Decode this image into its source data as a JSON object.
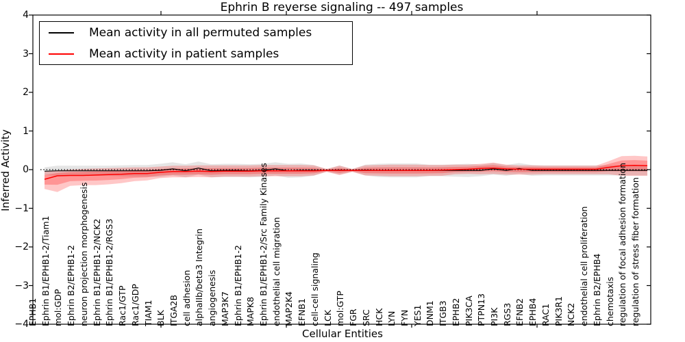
{
  "chart_data": {
    "type": "line",
    "title": "Ephrin B reverse signaling -- 497 samples",
    "xlabel": "Cellular Entities",
    "ylabel": "Inferred Activity",
    "ylim": [
      -4,
      4
    ],
    "yticks": [
      -4,
      -3,
      -2,
      -1,
      0,
      1,
      2,
      3,
      4
    ],
    "ytick_labels": [
      "−4",
      "−3",
      "−2",
      "−1",
      "0",
      "1",
      "2",
      "3",
      "4"
    ],
    "grid": "off",
    "zero_reference_line": 0,
    "legend": {
      "position": "upper left",
      "items": [
        {
          "label": "Mean activity in all permuted samples",
          "color": "#000000"
        },
        {
          "label": "Mean activity in patient samples",
          "color": "#ff0000"
        }
      ]
    },
    "categories": [
      "EPHB1",
      "Ephrin B1/EPHB1-2/Tiam1",
      "mol:GDP",
      "Ephrin B2/EPHB1-2",
      "neuron projection morphogenesis",
      "Ephrin B1/EPHB1-2/NCK2",
      "Ephrin B1/EPHB1-2/RGS3",
      "Rac1/GTP",
      "Rac1/GDP",
      "TIAM1",
      "BLK",
      "ITGA2B",
      "cell adhesion",
      "alphaIIb/beta3 Integrin",
      "angiogenesis",
      "MAP3K7",
      "Ephrin B1/EPHB1-2",
      "MAPK8",
      "Ephrin B1/EPHB1-2/Src Family Kinases",
      "endothelial cell migration",
      "MAP2K4",
      "EFNB1",
      "cell-cell signaling",
      "LCK",
      "mol:GTP",
      "FGR",
      "SRC",
      "HCK",
      "LYN",
      "FYN",
      "YES1",
      "DNM1",
      "ITGB3",
      "EPHB2",
      "PIK3CA",
      "PTPN13",
      "PI3K",
      "RGS3",
      "EFNB2",
      "EPHB4",
      "RAC1",
      "PIK3R1",
      "NCK2",
      "endothelial cell proliferation",
      "Ephrin B2/EPHB4",
      "chemotaxis",
      "regulation of focal adhesion formation",
      "regulation of stress fiber formation"
    ],
    "series": [
      {
        "name": "Mean activity in all permuted samples",
        "color": "#000000",
        "values": [
          -0.04,
          -0.03,
          -0.03,
          -0.03,
          -0.03,
          -0.03,
          -0.03,
          -0.03,
          -0.03,
          -0.02,
          0.02,
          -0.03,
          0.04,
          -0.03,
          -0.02,
          -0.02,
          -0.03,
          -0.02,
          0.02,
          -0.03,
          -0.02,
          -0.02,
          -0.02,
          -0.01,
          -0.02,
          -0.01,
          -0.02,
          -0.02,
          -0.02,
          -0.02,
          -0.02,
          -0.02,
          -0.02,
          -0.02,
          -0.02,
          0.02,
          -0.02,
          0.03,
          -0.02,
          -0.02,
          -0.02,
          -0.02,
          -0.02,
          -0.02,
          -0.02,
          -0.02,
          -0.02,
          -0.02
        ]
      },
      {
        "name": "Mean activity in patient samples",
        "color": "#ff0000",
        "values": [
          -0.25,
          -0.16,
          -0.15,
          -0.15,
          -0.14,
          -0.13,
          -0.12,
          -0.1,
          -0.1,
          -0.07,
          -0.05,
          -0.05,
          -0.04,
          -0.05,
          -0.04,
          -0.04,
          -0.04,
          -0.03,
          -0.03,
          -0.03,
          -0.03,
          -0.03,
          -0.02,
          -0.02,
          -0.02,
          -0.02,
          -0.02,
          -0.02,
          -0.02,
          -0.02,
          -0.02,
          -0.01,
          0.0,
          0.01,
          0.03,
          0.04,
          0.02,
          0.01,
          0.01,
          0.01,
          0.01,
          0.01,
          0.01,
          0.01,
          0.06,
          0.1,
          0.11,
          0.1
        ]
      }
    ],
    "bands": [
      {
        "name": "permuted samples range",
        "color": "rgba(0,0,0,0.10)",
        "center_series": 0,
        "halfwidth": [
          0.1,
          0.13,
          0.13,
          0.13,
          0.13,
          0.13,
          0.14,
          0.15,
          0.15,
          0.17,
          0.17,
          0.17,
          0.17,
          0.17,
          0.17,
          0.17,
          0.17,
          0.17,
          0.17,
          0.18,
          0.18,
          0.14,
          0.03,
          0.12,
          0.03,
          0.14,
          0.17,
          0.18,
          0.18,
          0.18,
          0.15,
          0.15,
          0.16,
          0.17,
          0.15,
          0.15,
          0.14,
          0.14,
          0.14,
          0.13,
          0.13,
          0.13,
          0.13,
          0.13,
          0.13,
          0.13,
          0.13,
          0.13
        ]
      },
      {
        "name": "patient samples range",
        "color": "rgba(255,0,0,0.22)",
        "inner_band_factor": 0.55,
        "upper": [
          -0.05,
          -0.03,
          0.0,
          0.02,
          0.03,
          0.04,
          0.05,
          0.06,
          0.06,
          0.08,
          0.1,
          0.1,
          0.11,
          0.11,
          0.11,
          0.11,
          0.11,
          0.12,
          0.12,
          0.12,
          0.12,
          0.11,
          0.02,
          0.1,
          0.02,
          0.11,
          0.12,
          0.13,
          0.13,
          0.13,
          0.12,
          0.12,
          0.13,
          0.13,
          0.15,
          0.18,
          0.13,
          0.11,
          0.11,
          0.1,
          0.1,
          0.1,
          0.1,
          0.1,
          0.22,
          0.35,
          0.36,
          0.34
        ],
        "lower": [
          -0.5,
          -0.58,
          -0.42,
          -0.4,
          -0.4,
          -0.38,
          -0.35,
          -0.3,
          -0.28,
          -0.22,
          -0.2,
          -0.2,
          -0.19,
          -0.2,
          -0.18,
          -0.18,
          -0.18,
          -0.17,
          -0.17,
          -0.17,
          -0.17,
          -0.15,
          -0.06,
          -0.14,
          -0.06,
          -0.15,
          -0.16,
          -0.17,
          -0.17,
          -0.17,
          -0.16,
          -0.16,
          -0.12,
          -0.11,
          -0.12,
          -0.11,
          -0.13,
          -0.13,
          -0.13,
          -0.12,
          -0.12,
          -0.12,
          -0.12,
          -0.12,
          -0.12,
          -0.16,
          -0.16,
          -0.16
        ]
      }
    ]
  }
}
